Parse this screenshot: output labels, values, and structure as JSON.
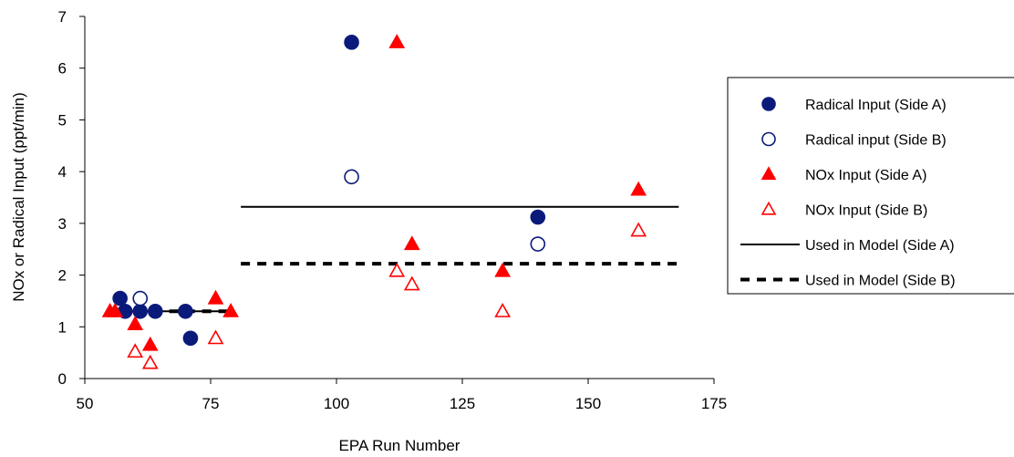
{
  "chart_data": {
    "type": "scatter",
    "title": "",
    "xlabel": "EPA Run Number",
    "ylabel": "NOx or Radical Input (ppt/min)",
    "xlim": [
      50,
      175
    ],
    "ylim": [
      0,
      7
    ],
    "x_ticks": [
      "50",
      "75",
      "100",
      "125",
      "150",
      "175"
    ],
    "y_ticks": [
      "0",
      "1",
      "2",
      "3",
      "4",
      "5",
      "6",
      "7"
    ],
    "grid": false,
    "legend_position": "right",
    "series": [
      {
        "name": "Radical Input (Side A)",
        "marker": "circle",
        "filled": true,
        "color": "#0a1a7a",
        "points": [
          [
            57,
            1.55
          ],
          [
            58,
            1.3
          ],
          [
            61,
            1.3
          ],
          [
            64,
            1.3
          ],
          [
            70,
            1.3
          ],
          [
            71,
            0.78
          ],
          [
            103,
            6.5
          ],
          [
            140,
            3.12
          ]
        ]
      },
      {
        "name": "Radical input (Side B)",
        "marker": "circle",
        "filled": false,
        "color": "#0a1a7a",
        "points": [
          [
            61,
            1.55
          ],
          [
            103,
            3.9
          ],
          [
            140,
            2.6
          ]
        ]
      },
      {
        "name": "NOx Input (Side A)",
        "marker": "triangle",
        "filled": true,
        "color": "#ff0000",
        "points": [
          [
            55,
            1.3
          ],
          [
            56,
            1.3
          ],
          [
            60,
            1.05
          ],
          [
            63,
            0.65
          ],
          [
            76,
            1.55
          ],
          [
            79,
            1.3
          ],
          [
            112,
            6.5
          ],
          [
            115,
            2.6
          ],
          [
            133,
            2.08
          ],
          [
            160,
            3.65
          ]
        ]
      },
      {
        "name": "NOx Input (Side B)",
        "marker": "triangle",
        "filled": false,
        "color": "#ff0000",
        "points": [
          [
            60,
            0.52
          ],
          [
            63,
            0.3
          ],
          [
            76,
            0.78
          ],
          [
            112,
            2.08
          ],
          [
            115,
            1.82
          ],
          [
            133,
            1.3
          ],
          [
            160,
            2.86
          ]
        ]
      },
      {
        "name": "Used in Model (Side A)",
        "type": "line",
        "style": "solid",
        "color": "#000000",
        "segments": [
          [
            [
              57,
              1.3
            ],
            [
              79,
              1.3
            ]
          ],
          [
            [
              81,
              3.32
            ],
            [
              168,
              3.32
            ]
          ]
        ]
      },
      {
        "name": "Used in Model (Side B)",
        "type": "line",
        "style": "dashed",
        "color": "#000000",
        "segments": [
          [
            [
              57,
              1.3
            ],
            [
              79,
              1.3
            ]
          ],
          [
            [
              81,
              2.22
            ],
            [
              168,
              2.22
            ]
          ]
        ]
      }
    ]
  }
}
